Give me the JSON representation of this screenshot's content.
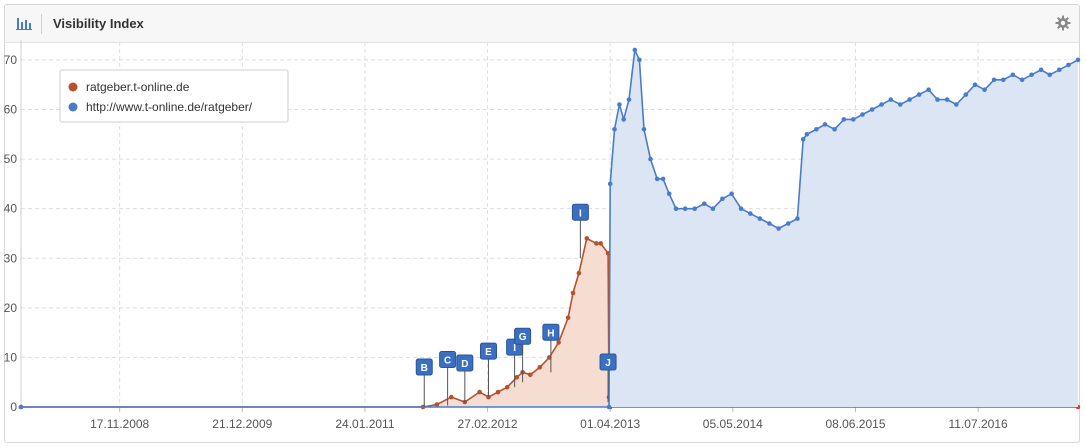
{
  "header": {
    "title": "Visibility Index",
    "chart_icon": "bar-chart-icon",
    "settings_icon": "gear-icon"
  },
  "chart_data": {
    "type": "area",
    "y_ticks": [
      "0",
      "10",
      "20",
      "30",
      "40",
      "50",
      "60",
      "70"
    ],
    "x_ticks": [
      "17.11.2008",
      "21.12.2009",
      "24.01.2011",
      "27.02.2012",
      "01.04.2013",
      "05.05.2014",
      "08.06.2015",
      "11.07.2016"
    ],
    "ylim": [
      0,
      72
    ],
    "x_range": [
      "2008-01-01",
      "2017-06-01"
    ],
    "grid": true,
    "legend_position": "top-left",
    "series": [
      {
        "name": "ratgeber.t-online.de",
        "color": "#b5512d",
        "fill": "#f6ddd2",
        "x": [
          "2008-01-01",
          "2011-08-01",
          "2011-09-15",
          "2011-11-01",
          "2011-12-15",
          "2012-02-01",
          "2012-03-01",
          "2012-04-01",
          "2012-05-01",
          "2012-06-01",
          "2012-06-20",
          "2012-07-15",
          "2012-08-15",
          "2012-09-15",
          "2012-10-15",
          "2012-11-15",
          "2012-12-01",
          "2012-12-20",
          "2013-01-15",
          "2013-02-15",
          "2013-03-01",
          "2013-03-25",
          "2013-03-28",
          "2013-04-01",
          "2017-06-01"
        ],
        "values": [
          0,
          0,
          0.5,
          2,
          1,
          3,
          2,
          3,
          4,
          6,
          7,
          6.5,
          8,
          10,
          13,
          18,
          23,
          27,
          34,
          33,
          33,
          31,
          2,
          0,
          0
        ]
      },
      {
        "name": "http://www.t-online.de/ratgeber/",
        "color": "#4a7cc9",
        "fill": "#dbe5f4",
        "x": [
          "2008-01-01",
          "2013-03-28",
          "2013-04-01",
          "2013-04-15",
          "2013-05-01",
          "2013-05-15",
          "2013-06-01",
          "2013-06-20",
          "2013-07-05",
          "2013-07-20",
          "2013-08-10",
          "2013-09-01",
          "2013-09-20",
          "2013-10-10",
          "2013-11-01",
          "2013-12-01",
          "2014-01-01",
          "2014-02-01",
          "2014-03-01",
          "2014-04-01",
          "2014-05-01",
          "2014-06-01",
          "2014-07-01",
          "2014-08-01",
          "2014-09-01",
          "2014-10-01",
          "2014-11-01",
          "2014-12-01",
          "2014-12-20",
          "2015-01-01",
          "2015-02-01",
          "2015-03-01",
          "2015-04-01",
          "2015-05-01",
          "2015-06-01",
          "2015-07-01",
          "2015-08-01",
          "2015-09-01",
          "2015-10-01",
          "2015-11-01",
          "2015-12-01",
          "2016-01-01",
          "2016-02-01",
          "2016-03-01",
          "2016-04-01",
          "2016-05-01",
          "2016-06-01",
          "2016-07-01",
          "2016-08-01",
          "2016-09-01",
          "2016-10-01",
          "2016-11-01",
          "2016-12-01",
          "2017-01-01",
          "2017-02-01",
          "2017-03-01",
          "2017-04-01",
          "2017-05-01",
          "2017-06-01"
        ],
        "values": [
          0,
          0,
          45,
          56,
          61,
          58,
          62,
          72,
          70,
          56,
          50,
          46,
          46,
          43,
          40,
          40,
          40,
          41,
          40,
          42,
          43,
          40,
          39,
          38,
          37,
          36,
          37,
          38,
          54,
          55,
          56,
          57,
          56,
          58,
          58,
          59,
          60,
          61,
          62,
          61,
          62,
          63,
          64,
          62,
          62,
          61,
          63,
          65,
          64,
          66,
          66,
          67,
          66,
          67,
          68,
          67,
          68,
          69,
          70
        ]
      }
    ],
    "events": [
      {
        "label": "B",
        "x": "2011-08-05",
        "y": 0
      },
      {
        "label": "C",
        "x": "2011-10-20",
        "y": 0.3
      },
      {
        "label": "D",
        "x": "2011-12-15",
        "y": 0.8
      },
      {
        "label": "E",
        "x": "2012-03-01",
        "y": 2
      },
      {
        "label": "I",
        "x": "2012-05-25",
        "y": 4
      },
      {
        "label": "G",
        "x": "2012-06-20",
        "y": 5
      },
      {
        "label": "H",
        "x": "2012-09-20",
        "y": 7
      },
      {
        "label": "I",
        "x": "2012-12-25",
        "y": 30
      },
      {
        "label": "J",
        "x": "2013-03-25",
        "y": 1
      }
    ]
  }
}
